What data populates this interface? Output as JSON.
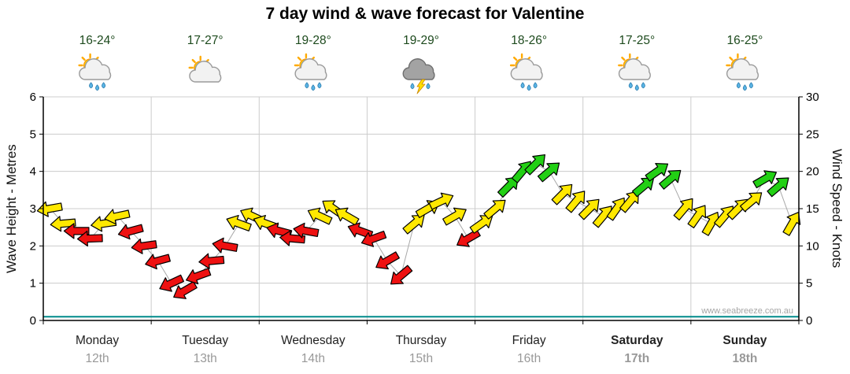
{
  "title": "7 day wind & wave forecast for Valentine",
  "watermark": "www.seabreeze.com.au",
  "colors": {
    "arrow_red": "#ee1111",
    "arrow_yellow": "#ffe800",
    "arrow_green": "#22d014",
    "wave_line": "#008b8b",
    "grid": "#cccccc",
    "axis": "#000000",
    "temp_text": "#1d4a1d",
    "day_text": "#222222",
    "date_text": "#999999",
    "connector": "#a8a8a8"
  },
  "chart_data": {
    "type": "line",
    "title": "7 day wind & wave forecast for Valentine",
    "left_axis": {
      "label": "Wave Height - Metres",
      "min": 0,
      "max": 6,
      "ticks": [
        0,
        1,
        2,
        3,
        4,
        5,
        6
      ]
    },
    "right_axis": {
      "label": "Wind Speed - Knots",
      "min": 0,
      "max": 30,
      "ticks": [
        0,
        5,
        10,
        15,
        20,
        25,
        30
      ]
    },
    "wave_height_m": 0.1,
    "arrow_color_scale": {
      "yellow_min_knots": 12.5,
      "green_min_knots": 17.5
    },
    "days": [
      {
        "name": "Monday",
        "date": "12th",
        "temp": "16-24°",
        "icon": "sun-cloud-rain",
        "weekend": false,
        "wind_knots": [
          15,
          13,
          12,
          11,
          13,
          14,
          12,
          10
        ],
        "wind_dir_deg": [
          170,
          175,
          180,
          178,
          172,
          168,
          165,
          172
        ]
      },
      {
        "name": "Tuesday",
        "date": "13th",
        "temp": "17-27°",
        "icon": "sun-cloud",
        "weekend": false,
        "wind_knots": [
          8,
          5,
          4,
          6,
          8,
          10,
          13,
          14
        ],
        "wind_dir_deg": [
          165,
          155,
          150,
          160,
          175,
          190,
          200,
          205
        ]
      },
      {
        "name": "Wednesday",
        "date": "14th",
        "temp": "19-28°",
        "icon": "sun-cloud-rain",
        "weekend": false,
        "wind_knots": [
          13,
          12,
          11,
          12,
          14,
          15,
          14,
          12
        ],
        "wind_dir_deg": [
          200,
          195,
          185,
          190,
          205,
          215,
          210,
          200
        ]
      },
      {
        "name": "Thursday",
        "date": "15th",
        "temp": "19-29°",
        "icon": "storm",
        "weekend": false,
        "wind_knots": [
          11,
          8,
          6,
          13,
          15,
          16,
          14,
          11
        ],
        "wind_dir_deg": [
          160,
          150,
          140,
          320,
          330,
          335,
          330,
          150
        ]
      },
      {
        "name": "Friday",
        "date": "16th",
        "temp": "18-26°",
        "icon": "sun-cloud-rain",
        "weekend": false,
        "wind_knots": [
          13,
          15,
          18,
          20,
          21,
          20,
          17,
          16
        ],
        "wind_dir_deg": [
          325,
          320,
          315,
          310,
          315,
          320,
          315,
          310
        ]
      },
      {
        "name": "Saturday",
        "date": "17th",
        "temp": "17-25°",
        "icon": "sun-cloud-rain",
        "weekend": true,
        "wind_knots": [
          15,
          14,
          15,
          16,
          18,
          20,
          19,
          15
        ],
        "wind_dir_deg": [
          315,
          310,
          305,
          310,
          320,
          325,
          320,
          310
        ]
      },
      {
        "name": "Sunday",
        "date": "18th",
        "temp": "16-25°",
        "icon": "sun-cloud-rain",
        "weekend": true,
        "wind_knots": [
          14,
          13,
          14,
          15,
          16,
          19,
          18,
          13
        ],
        "wind_dir_deg": [
          305,
          300,
          310,
          315,
          320,
          330,
          320,
          300
        ]
      }
    ]
  }
}
